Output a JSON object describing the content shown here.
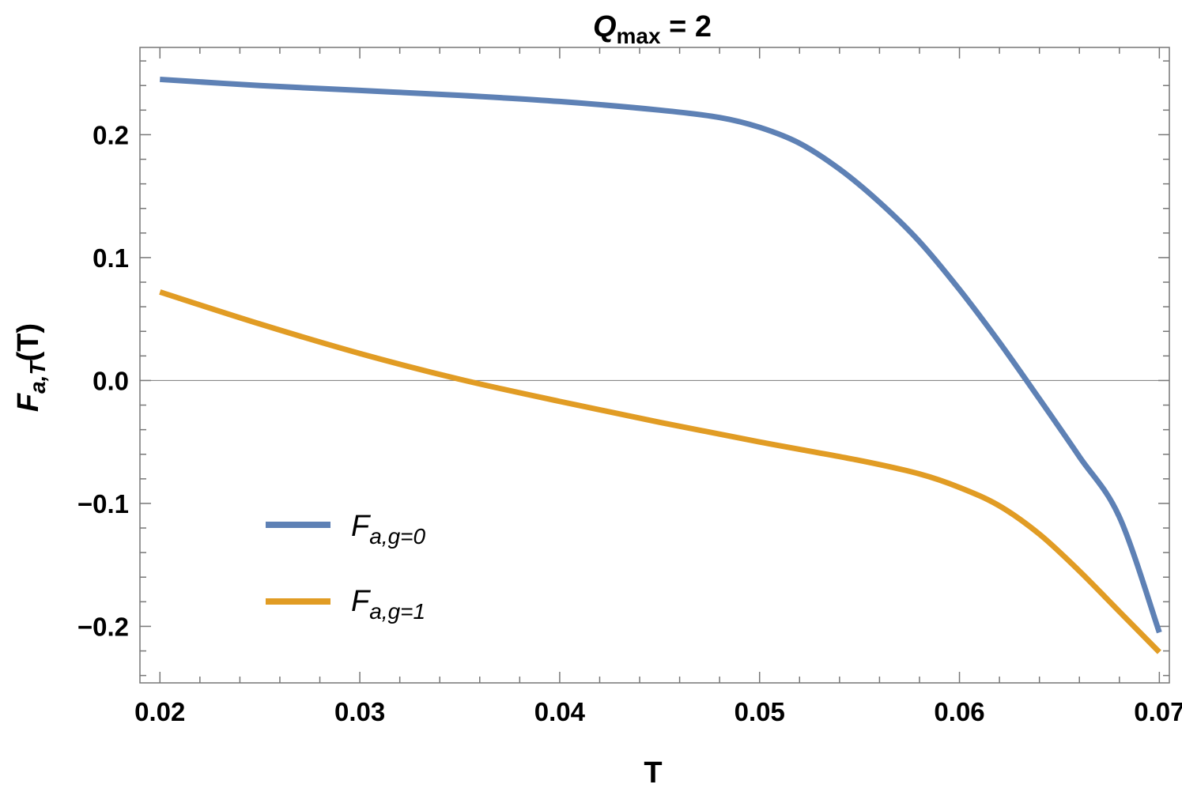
{
  "chart_data": {
    "type": "line",
    "title": {
      "main": "Q",
      "sub": "max",
      "rest": " = 2"
    },
    "xlabel": "T",
    "ylabel": {
      "main": "F",
      "sub": "a,T",
      "rest": "(T)"
    },
    "xlim": [
      0.019,
      0.0705
    ],
    "ylim": [
      -0.246,
      0.271
    ],
    "x_ticks": [
      0.02,
      0.03,
      0.04,
      0.05,
      0.06,
      0.07
    ],
    "x_tick_labels": [
      "0.02",
      "0.03",
      "0.04",
      "0.05",
      "0.06",
      "0.07"
    ],
    "y_ticks": [
      -0.2,
      -0.1,
      0.0,
      0.1,
      0.2
    ],
    "y_tick_labels": [
      "−0.2",
      "−0.1",
      "0.0",
      "0.1",
      "0.2"
    ],
    "grid": false,
    "legend_position": "bottom-left",
    "series": [
      {
        "name": {
          "main": "F",
          "sub": "a,g=0"
        },
        "color": "#5e81b5",
        "x": [
          0.02,
          0.025,
          0.03,
          0.035,
          0.04,
          0.045,
          0.048,
          0.05,
          0.052,
          0.054,
          0.056,
          0.058,
          0.06,
          0.062,
          0.064,
          0.066,
          0.068,
          0.07
        ],
        "y": [
          0.245,
          0.24,
          0.236,
          0.232,
          0.227,
          0.22,
          0.214,
          0.206,
          0.193,
          0.172,
          0.145,
          0.113,
          0.074,
          0.031,
          -0.015,
          -0.062,
          -0.111,
          -0.205
        ]
      },
      {
        "name": {
          "main": "F",
          "sub": "a,g=1"
        },
        "color": "#e19c24",
        "x": [
          0.02,
          0.025,
          0.03,
          0.035,
          0.04,
          0.045,
          0.05,
          0.055,
          0.058,
          0.06,
          0.062,
          0.064,
          0.066,
          0.068,
          0.07
        ],
        "y": [
          0.072,
          0.046,
          0.022,
          0.001,
          -0.017,
          -0.034,
          -0.05,
          -0.065,
          -0.076,
          -0.087,
          -0.102,
          -0.125,
          -0.155,
          -0.188,
          -0.221
        ]
      }
    ]
  }
}
